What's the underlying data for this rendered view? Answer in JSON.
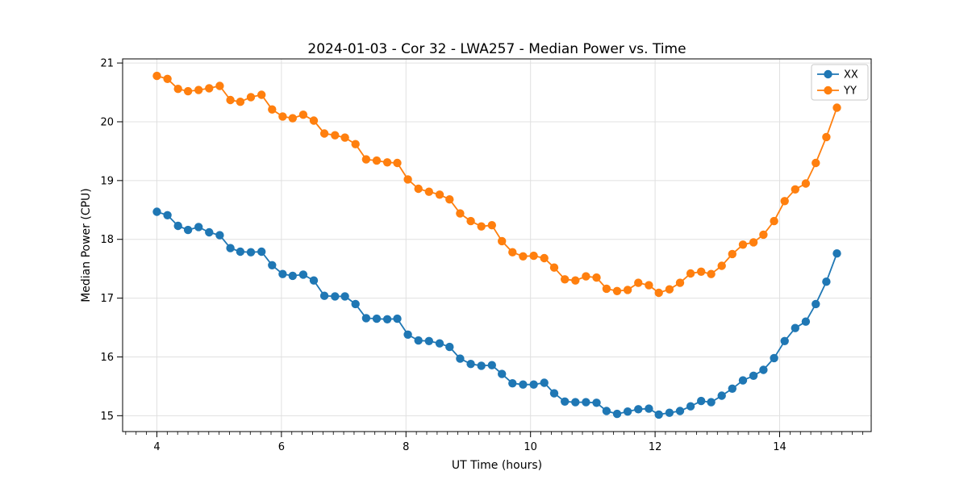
{
  "chart_data": {
    "type": "line",
    "title": "2024-01-03 - Cor 32 - LWA257 - Median Power vs. Time",
    "xlabel": "UT Time (hours)",
    "ylabel": "Median Power (CPU)",
    "x": [
      4.0,
      4.17,
      4.34,
      4.5,
      4.67,
      4.84,
      5.01,
      5.18,
      5.34,
      5.51,
      5.68,
      5.85,
      6.02,
      6.18,
      6.35,
      6.52,
      6.69,
      6.86,
      7.02,
      7.19,
      7.36,
      7.53,
      7.7,
      7.86,
      8.03,
      8.2,
      8.37,
      8.54,
      8.7,
      8.87,
      9.04,
      9.21,
      9.38,
      9.54,
      9.71,
      9.88,
      10.05,
      10.22,
      10.38,
      10.55,
      10.72,
      10.89,
      11.06,
      11.22,
      11.39,
      11.56,
      11.73,
      11.9,
      12.06,
      12.23,
      12.4,
      12.57,
      12.74,
      12.9,
      13.07,
      13.24,
      13.41,
      13.58,
      13.74,
      13.91,
      14.08,
      14.25,
      14.42,
      14.58,
      14.75,
      14.92
    ],
    "series": [
      {
        "name": "XX",
        "color": "#1f77b4",
        "values": [
          18.47,
          18.41,
          18.23,
          18.16,
          18.21,
          18.12,
          18.07,
          17.85,
          17.79,
          17.78,
          17.79,
          17.56,
          17.41,
          17.38,
          17.4,
          17.3,
          17.04,
          17.03,
          17.03,
          16.9,
          16.66,
          16.65,
          16.64,
          16.65,
          16.38,
          16.28,
          16.27,
          16.23,
          16.17,
          15.97,
          15.88,
          15.85,
          15.86,
          15.71,
          15.55,
          15.53,
          15.53,
          15.56,
          15.38,
          15.24,
          15.23,
          15.23,
          15.22,
          15.08,
          15.03,
          15.07,
          15.11,
          15.12,
          15.02,
          15.05,
          15.08,
          15.16,
          15.25,
          15.23,
          15.34,
          15.46,
          15.6,
          15.68,
          15.78,
          15.98,
          16.27,
          16.49,
          16.6,
          16.9,
          17.28,
          17.76
        ]
      },
      {
        "name": "YY",
        "color": "#ff7f0e",
        "values": [
          20.78,
          20.73,
          20.56,
          20.52,
          20.54,
          20.57,
          20.61,
          20.37,
          20.34,
          20.42,
          20.46,
          20.21,
          20.09,
          20.06,
          20.12,
          20.02,
          19.8,
          19.77,
          19.73,
          19.62,
          19.36,
          19.34,
          19.31,
          19.3,
          19.02,
          18.86,
          18.81,
          18.76,
          18.68,
          18.44,
          18.31,
          18.22,
          18.24,
          17.97,
          17.78,
          17.71,
          17.72,
          17.68,
          17.52,
          17.32,
          17.3,
          17.37,
          17.35,
          17.16,
          17.12,
          17.14,
          17.26,
          17.22,
          17.09,
          17.15,
          17.26,
          17.42,
          17.45,
          17.41,
          17.55,
          17.75,
          17.91,
          17.95,
          18.08,
          18.31,
          18.65,
          18.85,
          18.95,
          19.3,
          19.74,
          20.24
        ]
      }
    ],
    "xlim": [
      3.45,
      15.47
    ],
    "ylim": [
      14.73,
      21.07
    ],
    "xticks": [
      4,
      6,
      8,
      10,
      12,
      14
    ],
    "yticks": [
      15,
      16,
      17,
      18,
      19,
      20,
      21
    ],
    "x_minor_tick_step": 0.166667,
    "grid": true,
    "grid_color": "#e0e0e0",
    "background": "#ffffff",
    "marker": "circle",
    "legend": {
      "position": "upper right",
      "entries": [
        "XX",
        "YY"
      ]
    }
  }
}
